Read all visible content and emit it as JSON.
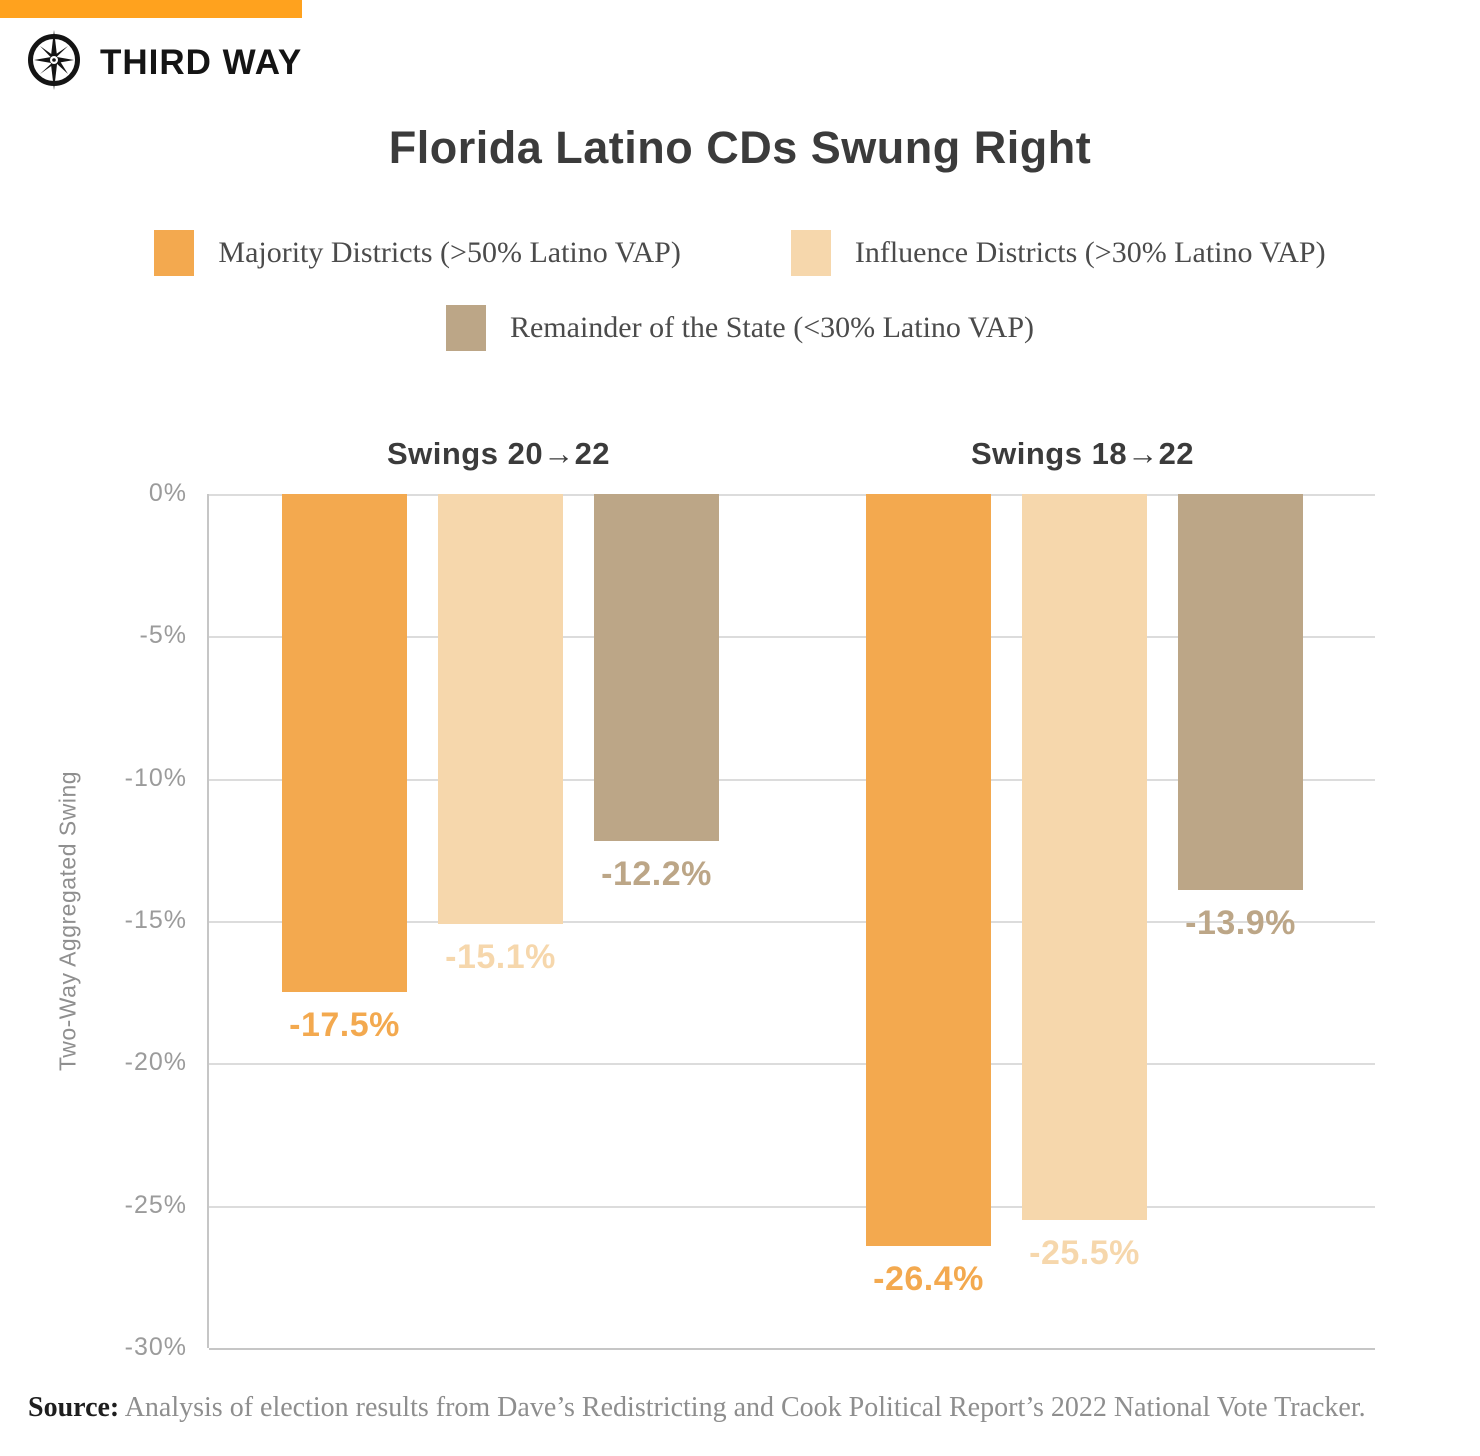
{
  "brand": {
    "logo_text": "THIRD WAY",
    "banner_color": "#FFA21E",
    "logo_color": "#141414"
  },
  "title": "Florida Latino CDs Swung Right",
  "legend": [
    {
      "label": "Majority Districts (>50% Latino VAP)",
      "color": "#F3A94F"
    },
    {
      "label": "Influence Districts (>30% Latino VAP)",
      "color": "#F6D7AC"
    },
    {
      "label": "Remainder of the State (<30% Latino VAP)",
      "color": "#BCA687"
    }
  ],
  "chart_data": {
    "type": "bar",
    "title": "Florida Latino CDs Swung Right",
    "xlabel": "",
    "ylabel": "Two-Way Aggregated Swing",
    "ylim": [
      -30,
      0
    ],
    "ytick_values": [
      0,
      -5,
      -10,
      -15,
      -20,
      -25,
      -30
    ],
    "ytick_labels": [
      "0%",
      "-5%",
      "-10%",
      "-15%",
      "-20%",
      "-25%",
      "-30%"
    ],
    "grid": true,
    "legend_position": "top",
    "groups": [
      "Swings 20→22",
      "Swings 18→22"
    ],
    "series": [
      {
        "name": "Majority Districts (>50% Latino VAP)",
        "color": "#F3A94F",
        "values": [
          -17.5,
          -26.4
        ],
        "labels": [
          "-17.5%",
          "-26.4%"
        ]
      },
      {
        "name": "Influence Districts (>30% Latino VAP)",
        "color": "#F6D7AC",
        "values": [
          -15.1,
          -25.5
        ],
        "labels": [
          "-15.1%",
          "-25.5%"
        ]
      },
      {
        "name": "Remainder of the State (<30% Latino VAP)",
        "color": "#BCA687",
        "values": [
          -12.2,
          -13.9
        ],
        "labels": [
          "-12.2%",
          "-13.9%"
        ]
      }
    ]
  },
  "source": {
    "prefix": "Source:",
    "text": " Analysis of election results from Dave’s Redistricting and Cook Political Report’s 2022 National Vote Tracker."
  }
}
